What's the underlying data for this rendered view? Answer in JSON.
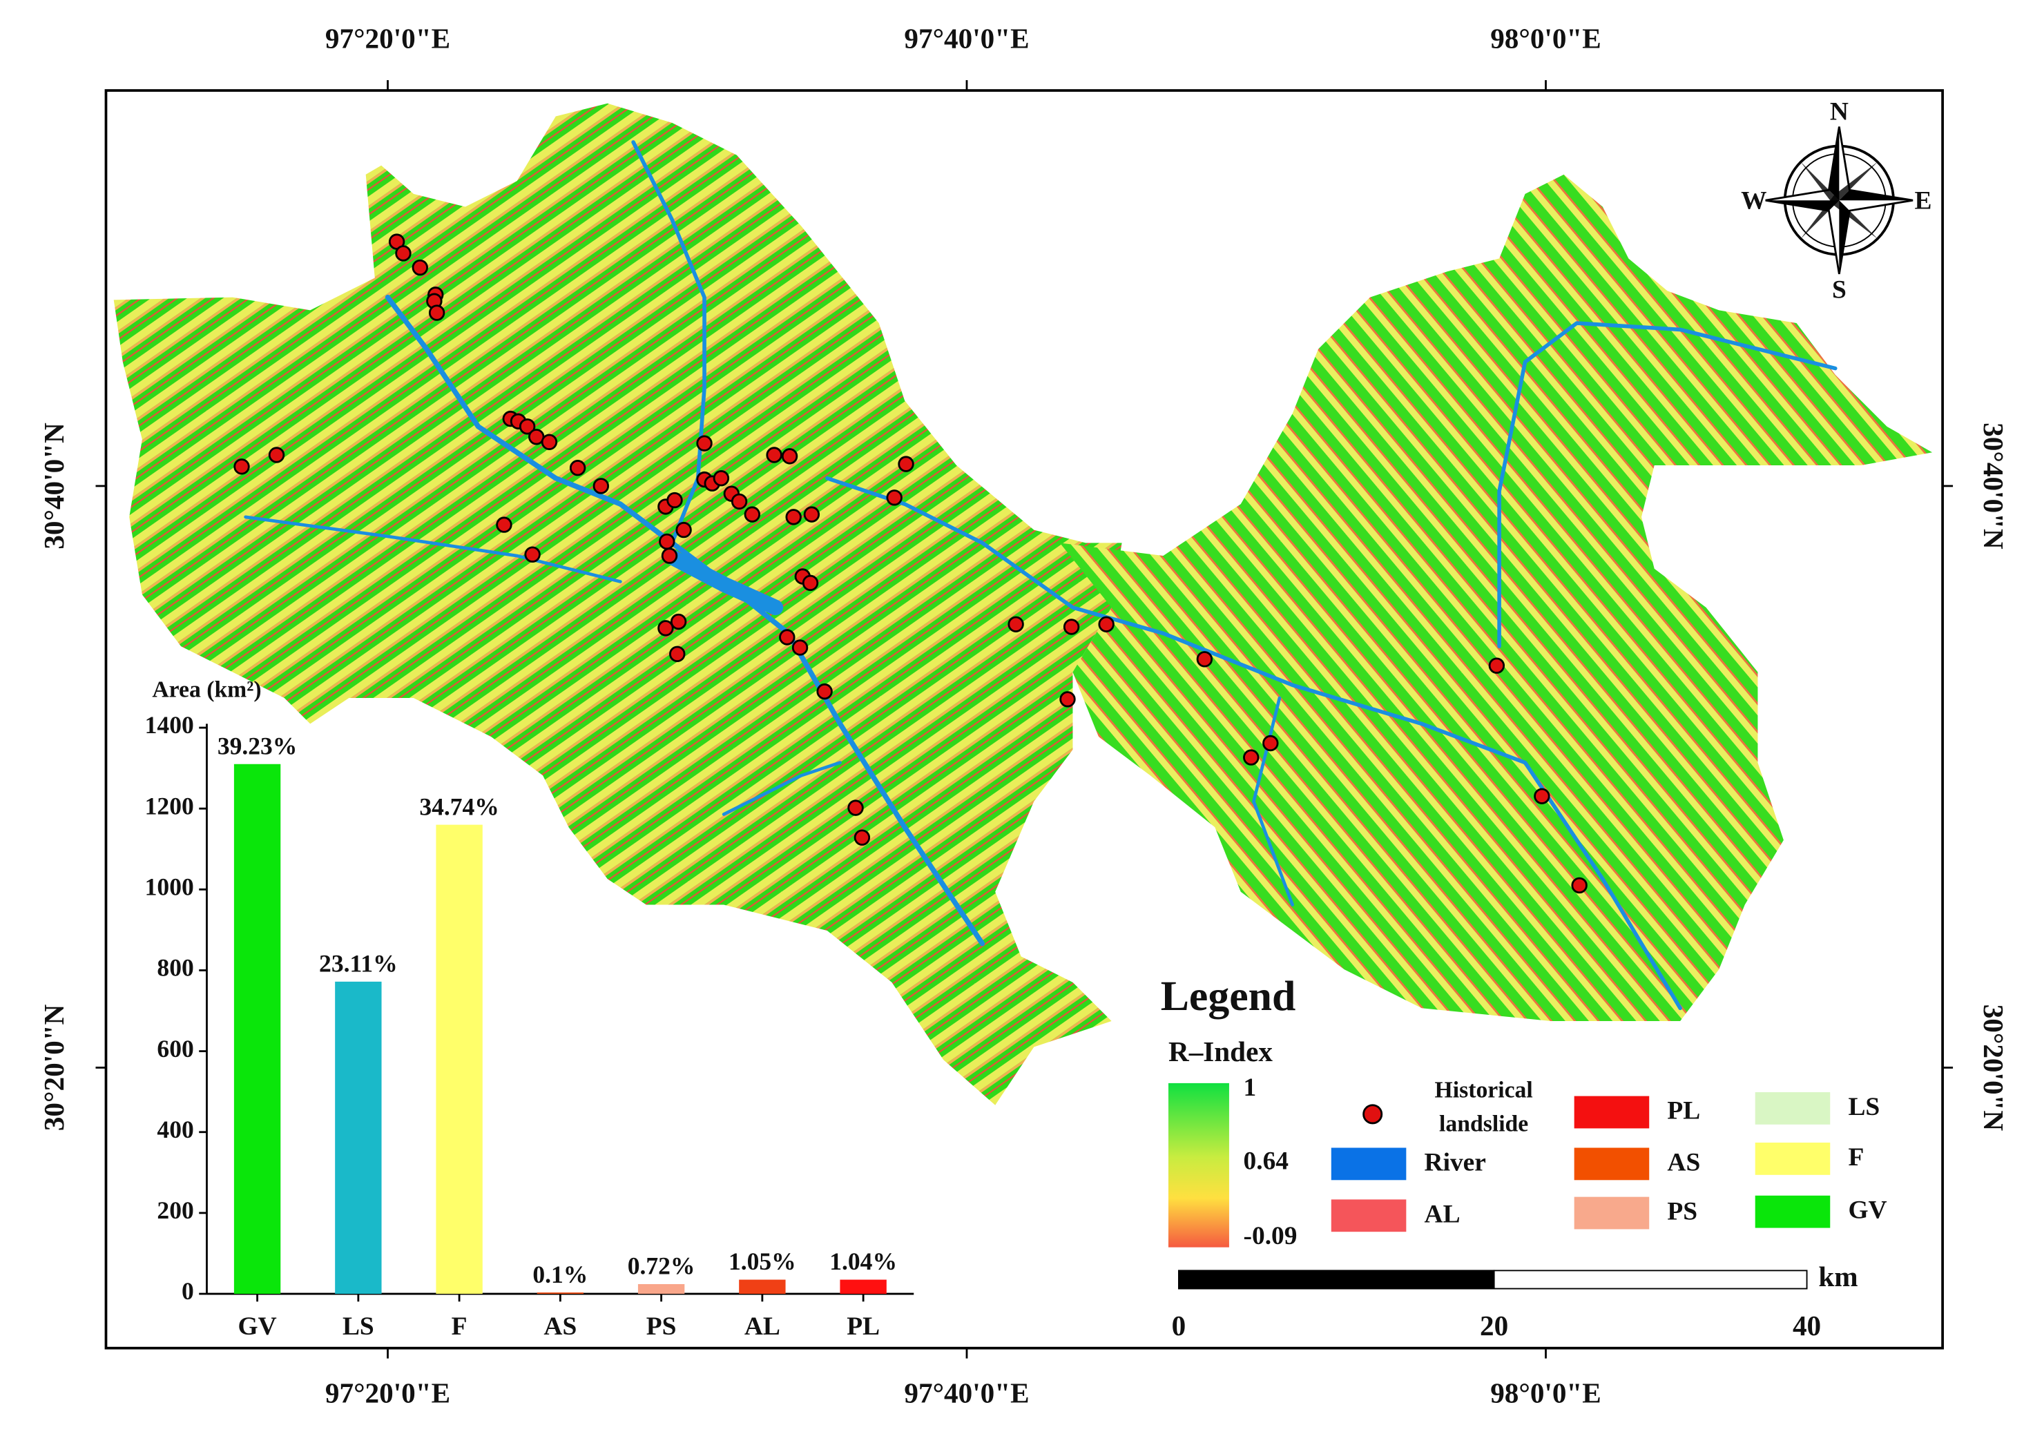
{
  "map": {
    "lon_labels": [
      "97°20'0\"E",
      "97°40'0\"E",
      "98°0'0\"E"
    ],
    "lat_labels": [
      "30°40'0\"N",
      "30°20'0\"N"
    ],
    "compass": {
      "n": "N",
      "s": "S",
      "w": "W",
      "e": "E"
    },
    "legend": {
      "title": "Legend",
      "r_index_title": "R–Index",
      "r_index_ticks": [
        "1",
        "0.64",
        "-0.09"
      ],
      "historical_landslide": [
        "Historical",
        "landslide"
      ],
      "items": [
        {
          "label": "River",
          "color": "#0a72e6"
        },
        {
          "label": "AL",
          "color": "#f5555a"
        },
        {
          "label": "PL",
          "color": "#f41010"
        },
        {
          "label": "AS",
          "color": "#f25000"
        },
        {
          "label": "PS",
          "color": "#f8a98c"
        },
        {
          "label": "LS",
          "color": "#d9f6c4"
        },
        {
          "label": "F",
          "color": "#ffff6a"
        },
        {
          "label": "GV",
          "color": "#0ae60a"
        }
      ]
    },
    "scale_bar": {
      "ticks": [
        "0",
        "20",
        "40"
      ],
      "unit": "km"
    }
  },
  "chart_data": {
    "type": "bar",
    "ylabel": "Area (km²)",
    "categories": [
      "GV",
      "LS",
      "F",
      "AS",
      "PS",
      "AL",
      "PL"
    ],
    "values": [
      1310,
      772,
      1160,
      3.3,
      24,
      35,
      35
    ],
    "share_labels": [
      "39.23%",
      "23.11%",
      "34.74%",
      "0.1%",
      "0.72%",
      "1.05%",
      "1.04%"
    ],
    "colors": [
      "#0ae60a",
      "#1ab9c9",
      "#ffff6a",
      "#e84a10",
      "#f9a68a",
      "#f04015",
      "#ff1010"
    ],
    "ylim": [
      0,
      1400
    ],
    "yticks": [
      0,
      200,
      400,
      600,
      800,
      1000,
      1200,
      1400
    ]
  }
}
